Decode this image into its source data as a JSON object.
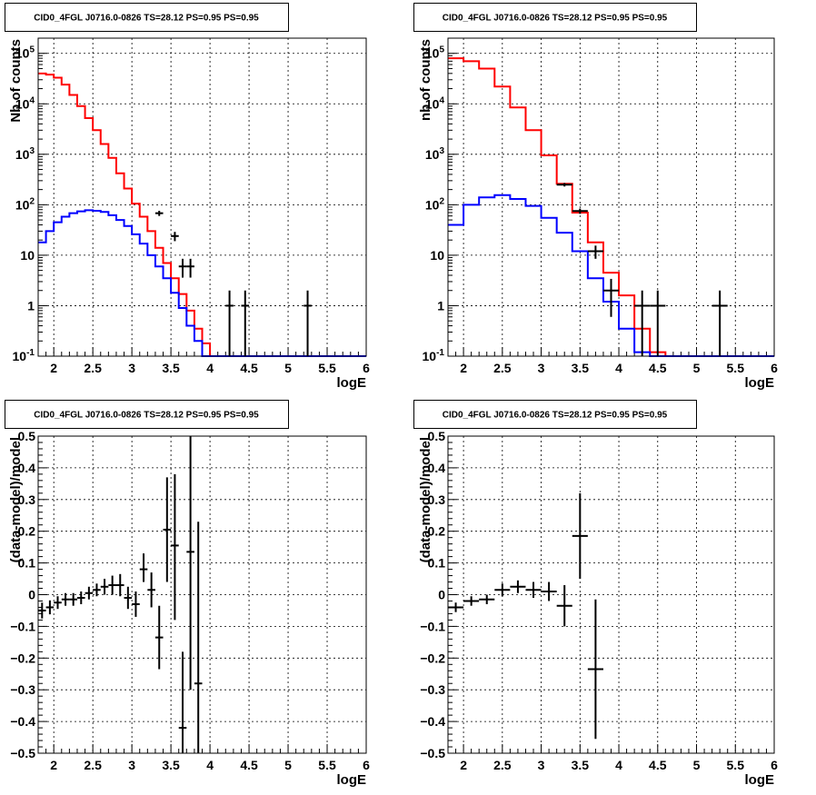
{
  "chart_data": [
    {
      "type": "step-histogram-log",
      "title": "CID0_4FGL J0716.0-0826 TS=28.12 PS=0.95 PS=0.95",
      "xlabel": "logE",
      "ylabel": "Nb of counts",
      "xlim": [
        1.8,
        6.0
      ],
      "ylim": [
        0.1,
        200000
      ],
      "log_y": true,
      "grid": true,
      "x_ticks": [
        "2",
        "2.5",
        "3",
        "3.5",
        "4",
        "4.5",
        "5",
        "5.5",
        "6"
      ],
      "y_ticks": [
        {
          "value": 0.1,
          "base": "10",
          "exp": "-1"
        },
        {
          "value": 1,
          "label": "1"
        },
        {
          "value": 10,
          "label": "10"
        },
        {
          "value": 100,
          "base": "10",
          "exp": "2"
        },
        {
          "value": 1000,
          "base": "10",
          "exp": "3"
        },
        {
          "value": 10000,
          "base": "10",
          "exp": "4"
        },
        {
          "value": 100000,
          "base": "10",
          "exp": "5"
        }
      ],
      "bin_edges": [
        1.8,
        1.9,
        2.0,
        2.1,
        2.2,
        2.3,
        2.4,
        2.5,
        2.6,
        2.7,
        2.8,
        2.9,
        3.0,
        3.1,
        3.2,
        3.3,
        3.4,
        3.5,
        3.6,
        3.7,
        3.8,
        3.9,
        4.0,
        4.1,
        4.2,
        4.3,
        4.4,
        4.5,
        4.6,
        4.7,
        4.8,
        4.9,
        5.0,
        5.1,
        5.2,
        5.3,
        5.4,
        5.5,
        5.6,
        5.7,
        5.8,
        5.9,
        6.0
      ],
      "series": [
        {
          "color": "#ff0000",
          "values": [
            40000,
            38000,
            33000,
            24000,
            15000,
            9000,
            5200,
            3000,
            1600,
            850,
            420,
            210,
            105,
            58,
            30,
            14,
            7,
            3.5,
            1.7,
            0.8,
            0.35,
            0.18,
            0.1,
            0.1,
            0.1,
            0.1,
            0.1,
            0.1,
            0.1,
            0.1,
            0.1,
            0.1,
            0.1,
            0.1,
            0.1,
            0.1,
            0.1,
            0.1,
            0.1,
            0.1,
            0.1,
            0.1
          ]
        },
        {
          "color": "#0000ff",
          "values": [
            18,
            30,
            45,
            58,
            68,
            74,
            78,
            76,
            72,
            62,
            50,
            38,
            26,
            17,
            10,
            6,
            3.5,
            1.8,
            0.9,
            0.4,
            0.2,
            0.1,
            0.1,
            0.1,
            0.1,
            0.1,
            0.1,
            0.1,
            0.1,
            0.1,
            0.1,
            0.1,
            0.1,
            0.1,
            0.1,
            0.1,
            0.1,
            0.1,
            0.1,
            0.1,
            0.1,
            0.1
          ]
        }
      ],
      "points": [
        {
          "x": 3.35,
          "y": 68,
          "xerr": 0.05,
          "ylo": 60,
          "yhi": 76
        },
        {
          "x": 3.55,
          "y": 24,
          "xerr": 0.05,
          "ylo": 19,
          "yhi": 29
        },
        {
          "x": 3.65,
          "y": 6,
          "xerr": 0.05,
          "ylo": 3.6,
          "yhi": 8.5
        },
        {
          "x": 3.75,
          "y": 6,
          "xerr": 0.05,
          "ylo": 3.6,
          "yhi": 8.5
        },
        {
          "x": 4.25,
          "y": 1,
          "xerr": 0.05,
          "ylo": 0.1,
          "yhi": 2.0
        },
        {
          "x": 4.45,
          "y": 1,
          "xerr": 0.05,
          "ylo": 0.1,
          "yhi": 2.0
        },
        {
          "x": 5.25,
          "y": 1,
          "xerr": 0.05,
          "ylo": 0.1,
          "yhi": 2.0
        }
      ]
    },
    {
      "type": "step-histogram-log",
      "title": "CID0_4FGL J0716.0-0826 TS=28.12 PS=0.95 PS=0.95",
      "xlabel": "logE",
      "ylabel": "nb of counts",
      "xlim": [
        1.8,
        6.0
      ],
      "ylim": [
        0.1,
        200000
      ],
      "log_y": true,
      "grid": true,
      "x_ticks": [
        "2",
        "2.5",
        "3",
        "3.5",
        "4",
        "4.5",
        "5",
        "5.5",
        "6"
      ],
      "y_ticks": [
        {
          "value": 0.1,
          "base": "10",
          "exp": "-1"
        },
        {
          "value": 1,
          "label": "1"
        },
        {
          "value": 10,
          "label": "10"
        },
        {
          "value": 100,
          "base": "10",
          "exp": "2"
        },
        {
          "value": 1000,
          "base": "10",
          "exp": "3"
        },
        {
          "value": 10000,
          "base": "10",
          "exp": "4"
        },
        {
          "value": 100000,
          "base": "10",
          "exp": "5"
        }
      ],
      "bin_edges": [
        1.8,
        2.0,
        2.2,
        2.4,
        2.6,
        2.8,
        3.0,
        3.2,
        3.4,
        3.6,
        3.8,
        4.0,
        4.2,
        4.4,
        4.6,
        4.8,
        5.0,
        5.2,
        5.4,
        5.6,
        5.8,
        6.0
      ],
      "series": [
        {
          "color": "#ff0000",
          "values": [
            80000,
            70000,
            50000,
            22000,
            8500,
            3000,
            950,
            260,
            70,
            18,
            4.5,
            1.6,
            0.35,
            0.12,
            0.1,
            0.1,
            0.1,
            0.1,
            0.1,
            0.1,
            0.1
          ]
        },
        {
          "color": "#0000ff",
          "values": [
            40,
            100,
            140,
            155,
            130,
            95,
            55,
            28,
            12,
            3.5,
            1.2,
            0.35,
            0.12,
            0.1,
            0.1,
            0.1,
            0.1,
            0.1,
            0.1,
            0.1,
            0.1
          ]
        }
      ],
      "points": [
        {
          "x": 3.3,
          "y": 250,
          "xerr": 0.1,
          "ylo": 230,
          "yhi": 270
        },
        {
          "x": 3.5,
          "y": 75,
          "xerr": 0.1,
          "ylo": 66,
          "yhi": 84
        },
        {
          "x": 3.7,
          "y": 12,
          "xerr": 0.1,
          "ylo": 8.5,
          "yhi": 15.5
        },
        {
          "x": 3.9,
          "y": 2,
          "xerr": 0.1,
          "ylo": 0.6,
          "yhi": 3.4
        },
        {
          "x": 4.3,
          "y": 1,
          "xerr": 0.1,
          "ylo": 0.1,
          "yhi": 2.0
        },
        {
          "x": 4.5,
          "y": 1,
          "xerr": 0.1,
          "ylo": 0.1,
          "yhi": 2.0
        },
        {
          "x": 5.3,
          "y": 1,
          "xerr": 0.1,
          "ylo": 0.1,
          "yhi": 2.0
        }
      ]
    },
    {
      "type": "scatter-errorbars",
      "title": "CID0_4FGL J0716.0-0826 TS=28.12 PS=0.95 PS=0.95",
      "xlabel": "logE",
      "ylabel": "(data-model)/model",
      "xlim": [
        1.8,
        6.0
      ],
      "ylim": [
        -0.5,
        0.5
      ],
      "grid": true,
      "x_ticks": [
        "2",
        "2.5",
        "3",
        "3.5",
        "4",
        "4.5",
        "5",
        "5.5",
        "6"
      ],
      "y_ticks": [
        "-0.5",
        "-0.4",
        "-0.3",
        "-0.2",
        "-0.1",
        "0",
        "0.1",
        "0.2",
        "0.3",
        "0.4",
        "0.5"
      ],
      "points": [
        {
          "x": 1.85,
          "y": -0.05,
          "xerr": 0.05,
          "ylo": -0.075,
          "yhi": -0.025
        },
        {
          "x": 1.95,
          "y": -0.04,
          "xerr": 0.05,
          "ylo": -0.062,
          "yhi": -0.018
        },
        {
          "x": 2.05,
          "y": -0.025,
          "xerr": 0.05,
          "ylo": -0.045,
          "yhi": -0.005
        },
        {
          "x": 2.15,
          "y": -0.015,
          "xerr": 0.05,
          "ylo": -0.035,
          "yhi": 0.005
        },
        {
          "x": 2.25,
          "y": -0.015,
          "xerr": 0.05,
          "ylo": -0.035,
          "yhi": 0.005
        },
        {
          "x": 2.35,
          "y": -0.01,
          "xerr": 0.05,
          "ylo": -0.03,
          "yhi": 0.01
        },
        {
          "x": 2.45,
          "y": 0.005,
          "xerr": 0.05,
          "ylo": -0.015,
          "yhi": 0.025
        },
        {
          "x": 2.55,
          "y": 0.015,
          "xerr": 0.05,
          "ylo": -0.005,
          "yhi": 0.035
        },
        {
          "x": 2.65,
          "y": 0.025,
          "xerr": 0.05,
          "ylo": 0.0,
          "yhi": 0.05
        },
        {
          "x": 2.75,
          "y": 0.03,
          "xerr": 0.05,
          "ylo": 0.0,
          "yhi": 0.06
        },
        {
          "x": 2.85,
          "y": 0.03,
          "xerr": 0.05,
          "ylo": -0.005,
          "yhi": 0.065
        },
        {
          "x": 2.95,
          "y": -0.01,
          "xerr": 0.05,
          "ylo": -0.045,
          "yhi": 0.025
        },
        {
          "x": 3.05,
          "y": -0.03,
          "xerr": 0.05,
          "ylo": -0.07,
          "yhi": 0.01
        },
        {
          "x": 3.15,
          "y": 0.08,
          "xerr": 0.05,
          "ylo": 0.04,
          "yhi": 0.13
        },
        {
          "x": 3.25,
          "y": 0.015,
          "xerr": 0.05,
          "ylo": -0.04,
          "yhi": 0.07
        },
        {
          "x": 3.35,
          "y": -0.135,
          "xerr": 0.05,
          "ylo": -0.235,
          "yhi": -0.035
        },
        {
          "x": 3.45,
          "y": 0.205,
          "xerr": 0.05,
          "ylo": 0.04,
          "yhi": 0.37
        },
        {
          "x": 3.55,
          "y": 0.155,
          "xerr": 0.05,
          "ylo": -0.08,
          "yhi": 0.38
        },
        {
          "x": 3.65,
          "y": -0.42,
          "xerr": 0.05,
          "ylo": -0.5,
          "yhi": -0.18
        },
        {
          "x": 3.75,
          "y": 0.135,
          "xerr": 0.05,
          "ylo": -0.3,
          "yhi": 0.5
        },
        {
          "x": 3.85,
          "y": -0.28,
          "xerr": 0.05,
          "ylo": -0.5,
          "yhi": 0.23
        }
      ]
    },
    {
      "type": "scatter-errorbars",
      "title": "CID0_4FGL J0716.0-0826 TS=28.12 PS=0.95 PS=0.95",
      "xlabel": "logE",
      "ylabel": "(data-model)/model",
      "xlim": [
        1.8,
        6.0
      ],
      "ylim": [
        -0.5,
        0.5
      ],
      "grid": true,
      "x_ticks": [
        "2",
        "2.5",
        "3",
        "3.5",
        "4",
        "4.5",
        "5",
        "5.5",
        "6"
      ],
      "y_ticks": [
        "-0.5",
        "-0.4",
        "-0.3",
        "-0.2",
        "-0.1",
        "0",
        "0.1",
        "0.2",
        "0.3",
        "0.4",
        "0.5"
      ],
      "points": [
        {
          "x": 1.9,
          "y": -0.04,
          "xerr": 0.1,
          "ylo": -0.055,
          "yhi": -0.025
        },
        {
          "x": 2.1,
          "y": -0.02,
          "xerr": 0.1,
          "ylo": -0.035,
          "yhi": -0.005
        },
        {
          "x": 2.3,
          "y": -0.015,
          "xerr": 0.1,
          "ylo": -0.03,
          "yhi": 0.0
        },
        {
          "x": 2.5,
          "y": 0.015,
          "xerr": 0.1,
          "ylo": -0.005,
          "yhi": 0.035
        },
        {
          "x": 2.7,
          "y": 0.025,
          "xerr": 0.1,
          "ylo": 0.005,
          "yhi": 0.045
        },
        {
          "x": 2.9,
          "y": 0.015,
          "xerr": 0.1,
          "ylo": -0.01,
          "yhi": 0.04
        },
        {
          "x": 3.1,
          "y": 0.01,
          "xerr": 0.1,
          "ylo": -0.02,
          "yhi": 0.04
        },
        {
          "x": 3.3,
          "y": -0.035,
          "xerr": 0.1,
          "ylo": -0.1,
          "yhi": 0.03
        },
        {
          "x": 3.5,
          "y": 0.185,
          "xerr": 0.1,
          "ylo": 0.05,
          "yhi": 0.32
        },
        {
          "x": 3.7,
          "y": -0.235,
          "xerr": 0.1,
          "ylo": -0.455,
          "yhi": -0.015
        }
      ]
    }
  ]
}
